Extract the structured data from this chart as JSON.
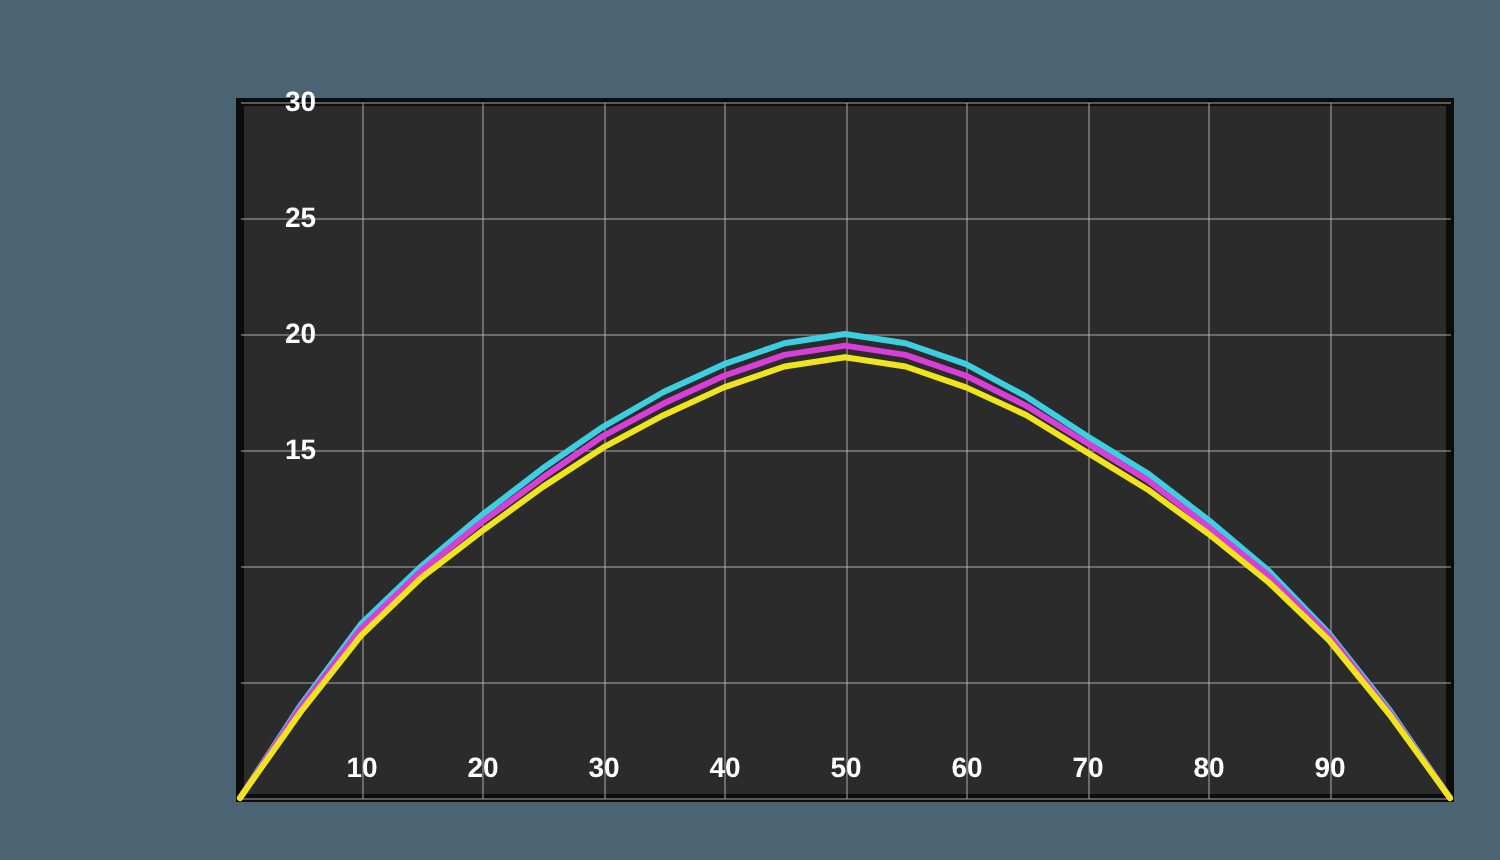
{
  "chart_data": {
    "type": "line",
    "x": [
      0,
      5,
      10,
      15,
      20,
      25,
      30,
      35,
      40,
      45,
      50,
      55,
      60,
      65,
      70,
      75,
      80,
      85,
      90,
      95,
      100
    ],
    "series": [
      {
        "color": "#3ccfe0",
        "values": [
          0,
          4.0,
          7.5,
          10.0,
          12.2,
          14.2,
          16.0,
          17.5,
          18.7,
          19.6,
          20.0,
          19.6,
          18.7,
          17.3,
          15.6,
          14.0,
          12.0,
          9.8,
          7.1,
          3.8,
          0
        ]
      },
      {
        "color": "#d83fd8",
        "values": [
          0,
          3.9,
          7.3,
          9.8,
          11.9,
          13.8,
          15.6,
          17.0,
          18.2,
          19.1,
          19.5,
          19.1,
          18.2,
          16.9,
          15.3,
          13.7,
          11.7,
          9.6,
          7.0,
          3.7,
          0
        ]
      },
      {
        "color": "#f0e41c",
        "values": [
          0,
          3.7,
          7.0,
          9.5,
          11.5,
          13.4,
          15.1,
          16.5,
          17.7,
          18.6,
          19.0,
          18.6,
          17.7,
          16.5,
          14.9,
          13.3,
          11.4,
          9.3,
          6.8,
          3.6,
          0
        ]
      }
    ],
    "xlim": [
      0,
      100
    ],
    "xticks": [
      10,
      20,
      30,
      40,
      50,
      60,
      70,
      80,
      90
    ],
    "ylim": [
      0,
      30
    ],
    "yticks": [
      {
        "value": 0,
        "label": null
      },
      {
        "value": 5,
        "label": null
      },
      {
        "value": 10,
        "label": null
      },
      15,
      20,
      25,
      30
    ],
    "grid": true,
    "line_style": "solid",
    "marker": "none"
  }
}
